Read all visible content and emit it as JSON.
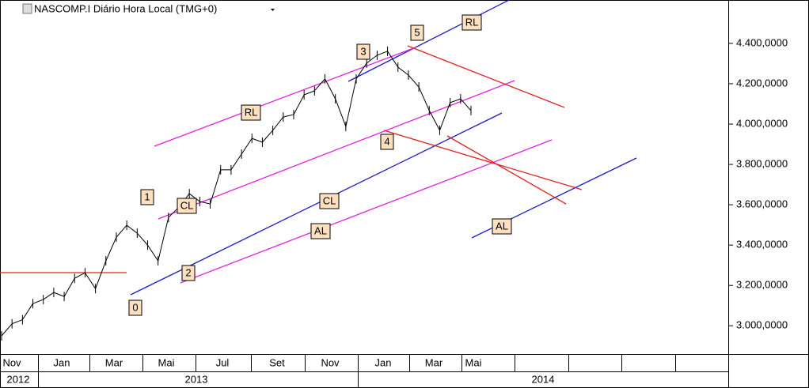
{
  "chart_data": {
    "type": "line",
    "title": "NASCOMP.I Diário Hora Local (TMG+0)",
    "series": [
      {
        "name": "NASCOMP.I",
        "color": "#000000",
        "values": [
          2950,
          3010,
          3030,
          3110,
          3130,
          3165,
          3145,
          3235,
          3263,
          3184,
          3322,
          3439,
          3498,
          3459,
          3400,
          3322,
          3537,
          3588,
          3655,
          3616,
          3604,
          3773,
          3773,
          3851,
          3929,
          3910,
          3969,
          4035,
          4047,
          4145,
          4165,
          4224,
          4125,
          3988,
          4224,
          4302,
          4341,
          4361,
          4282,
          4243,
          4184,
          4067,
          3969,
          4106,
          4125,
          4067
        ]
      }
    ],
    "ylim": [
      2860,
      4615
    ],
    "yticks": [
      {
        "value": 3000,
        "label": "3.000,0000"
      },
      {
        "value": 3200,
        "label": "3.200,0000"
      },
      {
        "value": 3400,
        "label": "3.400,0000"
      },
      {
        "value": 3600,
        "label": "3.600,0000"
      },
      {
        "value": 3800,
        "label": "3.800,0000"
      },
      {
        "value": 4000,
        "label": "4.000,0000"
      },
      {
        "value": 4200,
        "label": "4.200,0000"
      },
      {
        "value": 4400,
        "label": "4.400,0000"
      }
    ],
    "months": [
      "Nov",
      "Jan",
      "Mar",
      "Mai",
      "Jul",
      "Set",
      "Nov",
      "Jan",
      "Mar",
      "Mai"
    ],
    "years": [
      "2012",
      "2013",
      "2014"
    ],
    "annotations": [
      "0",
      "1",
      "2",
      "3",
      "4",
      "5",
      "RL",
      "RL",
      "CL",
      "CL",
      "AL",
      "AL"
    ]
  }
}
